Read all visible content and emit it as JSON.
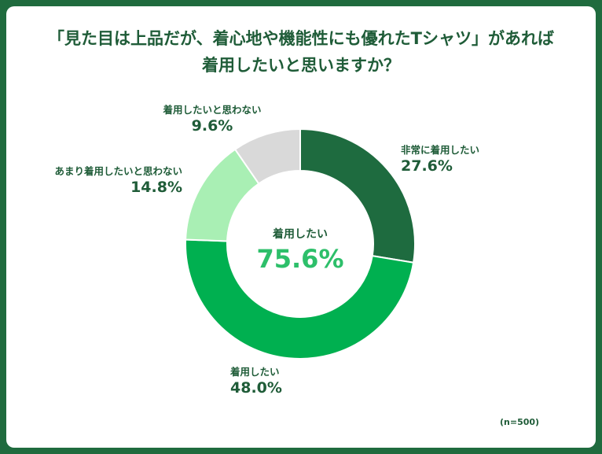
{
  "title": {
    "line1": "「見た目は上品だが、着心地や機能性にも優れたTシャツ」があれば",
    "line2": "着用したいと思いますか？"
  },
  "center": {
    "label": "着用したい",
    "value": "75.6%"
  },
  "note": "(n=500)",
  "colors": {
    "frame": "#1f6b3e",
    "text": "#1f5c38",
    "center_value": "#2dbf6a"
  },
  "chart_data": {
    "type": "donut",
    "segments": [
      {
        "name": "非常に着用したい",
        "value": 27.6,
        "label": "27.6%",
        "color": "#1e6b3f"
      },
      {
        "name": "着用したい",
        "value": 48.0,
        "label": "48.0%",
        "color": "#00b050"
      },
      {
        "name": "あまり着用したいと思わない",
        "value": 14.8,
        "label": "14.8%",
        "color": "#a9efb4"
      },
      {
        "name": "着用したいと思わない",
        "value": 9.6,
        "label": "9.6%",
        "color": "#d9d9d9"
      }
    ],
    "start": "12 o'clock",
    "direction": "clockwise"
  }
}
